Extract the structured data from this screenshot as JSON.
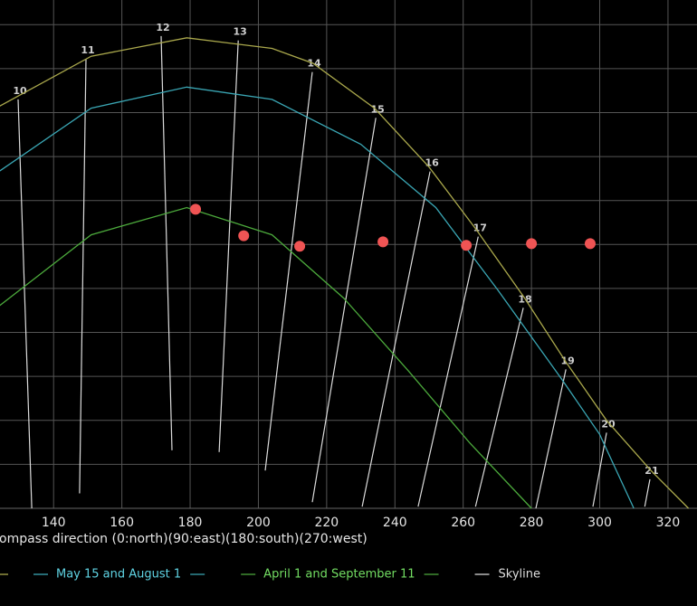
{
  "chart_data": {
    "type": "line",
    "x_label": "ompass direction (0:north)(90:east)(180:south)(270:west)",
    "xlim": [
      124.3,
      328.5
    ],
    "ylim": [
      0,
      57.8
    ],
    "xticks": [
      140,
      160,
      180,
      200,
      220,
      240,
      260,
      280,
      300,
      320
    ],
    "ygrid": [
      5,
      10,
      15,
      20,
      25,
      30,
      35,
      40,
      45,
      50,
      55
    ],
    "grid": true,
    "series": [
      {
        "color": "#aaa84c",
        "x": [
          124,
          151,
          179,
          204,
          216,
          234,
          250,
          264,
          278,
          290,
          302,
          315,
          326
        ],
        "values": [
          45.7,
          51.4,
          53.5,
          52.3,
          50.6,
          45.5,
          38.8,
          31.6,
          23.9,
          16.7,
          10.0,
          4.3,
          0
        ]
      },
      {
        "name": "May 15 and August 1",
        "color": "#3aa6b4",
        "text_color": "#5fd3e3",
        "x": [
          124,
          151,
          179,
          204,
          230,
          252,
          270,
          289,
          300,
          310
        ],
        "values": [
          38.3,
          45.5,
          47.9,
          46.5,
          41.4,
          34.2,
          24.9,
          14.6,
          8.4,
          0
        ]
      },
      {
        "name": "April 1 and September 11",
        "color": "#4caa3c",
        "text_color": "#72dc62",
        "x": [
          124,
          151,
          179,
          204,
          225,
          244,
          262,
          280
        ],
        "values": [
          23.0,
          31.1,
          34.2,
          31.1,
          23.9,
          15.6,
          7.4,
          0
        ]
      }
    ],
    "skyline_legend": "Skyline",
    "skyline_color": "#dddddd",
    "hour_lines": [
      {
        "hour": 10,
        "x": [
          129.6,
          133.6
        ],
        "values": [
          46.5,
          0
        ]
      },
      {
        "hour": 11,
        "x": [
          149.5,
          147.6
        ],
        "values": [
          51.1,
          1.7
        ]
      },
      {
        "hour": 12,
        "x": [
          171.5,
          174.7
        ],
        "values": [
          53.7,
          6.6
        ]
      },
      {
        "hour": 13,
        "x": [
          194.1,
          188.5
        ],
        "values": [
          53.2,
          6.4
        ]
      },
      {
        "hour": 14,
        "x": [
          215.8,
          202.0
        ],
        "values": [
          49.6,
          4.3
        ]
      },
      {
        "hour": 15,
        "x": [
          234.4,
          215.8
        ],
        "values": [
          44.4,
          0.7
        ]
      },
      {
        "hour": 16,
        "x": [
          250.3,
          230.4
        ],
        "values": [
          38.3,
          0.2
        ]
      },
      {
        "hour": 17,
        "x": [
          264.4,
          246.8
        ],
        "values": [
          30.9,
          0.2
        ]
      },
      {
        "hour": 18,
        "x": [
          277.6,
          263.6
        ],
        "values": [
          22.8,
          0.2
        ]
      },
      {
        "hour": 19,
        "x": [
          290.1,
          281.3
        ],
        "values": [
          15.8,
          0
        ]
      },
      {
        "hour": 20,
        "x": [
          302.0,
          298.0
        ],
        "values": [
          8.6,
          0.2
        ]
      },
      {
        "hour": 21,
        "x": [
          314.7,
          313.2
        ],
        "values": [
          3.3,
          0.2
        ]
      }
    ],
    "points": {
      "color": "#f05454",
      "x": [
        181.6,
        195.7,
        212.1,
        236.5,
        260.9,
        280.0,
        297.2
      ],
      "values": [
        34.0,
        31.0,
        29.8,
        30.3,
        29.9,
        30.1,
        30.1
      ]
    }
  }
}
